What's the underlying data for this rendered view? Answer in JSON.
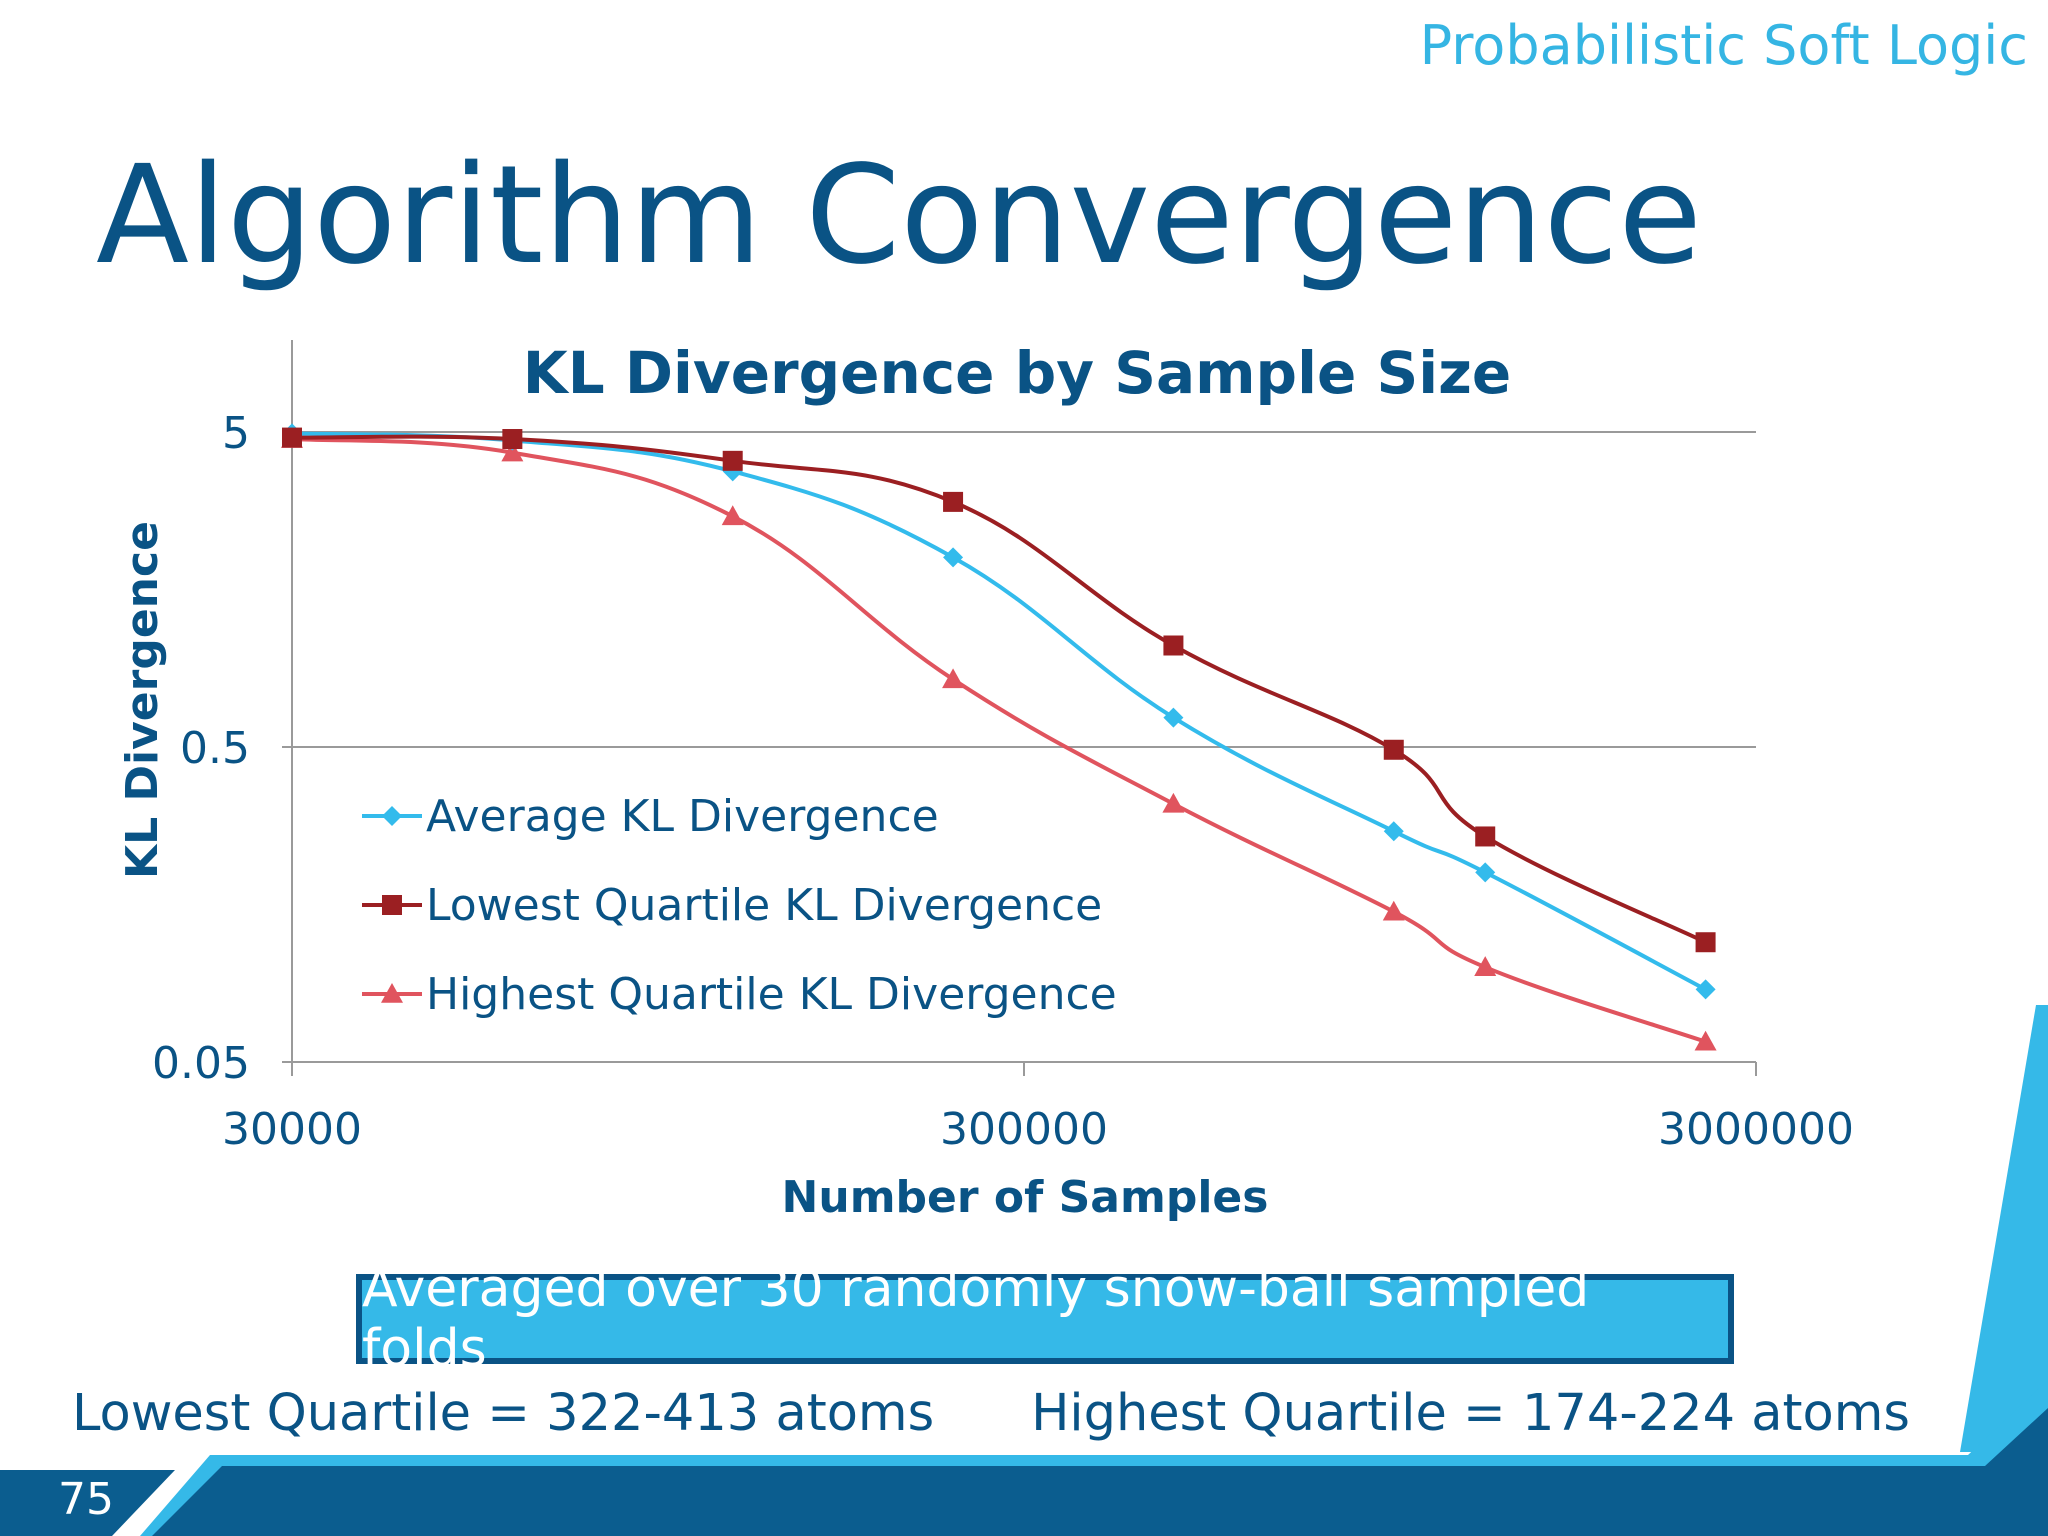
{
  "header": {
    "tag": "Probabilistic Soft Logic"
  },
  "slide": {
    "title": "Algorithm Convergence",
    "page_number": "75"
  },
  "note": {
    "text": "Averaged over 30 randomly snow-ball sampled folds"
  },
  "quartiles": {
    "lowest": "Lowest Quartile = 322-413 atoms",
    "highest": "Highest Quartile = 174-224 atoms"
  },
  "colors": {
    "title": "#0a5385",
    "accent": "#35b5e3",
    "average": "#33bbec",
    "lowest": "#9b1f22",
    "highest": "#e0545e",
    "footer_dark": "#0b5d8f"
  },
  "chart_data": {
    "type": "line",
    "title": "KL Divergence by Sample Size",
    "xlabel": "Number of Samples",
    "ylabel": "KL Divergence",
    "x_scale": "log",
    "y_scale": "log",
    "xlim": [
      30000,
      3000000
    ],
    "ylim": [
      0.05,
      5
    ],
    "x_ticks": [
      "30000",
      "300000",
      "3000000"
    ],
    "y_ticks": [
      "5",
      "0.5",
      "0.05"
    ],
    "grid": "horizontal",
    "legend_position": "left-inside",
    "x": [
      30000,
      60000,
      120000,
      240000,
      480000,
      960000,
      1280000,
      2560000
    ],
    "series": [
      {
        "name": "Average KL Divergence",
        "marker": "diamond",
        "color": "#33bbec",
        "values": [
          4.95,
          4.7,
          3.75,
          2.0,
          0.62,
          0.27,
          0.2,
          0.085
        ]
      },
      {
        "name": "Lowest Quartile KL Divergence",
        "marker": "square",
        "color": "#9b1f22",
        "values": [
          4.8,
          4.75,
          4.05,
          3.0,
          1.05,
          0.49,
          0.26,
          0.12
        ]
      },
      {
        "name": "Highest Quartile KL Divergence",
        "marker": "triangle",
        "color": "#e0545e",
        "values": [
          4.75,
          4.3,
          2.7,
          0.82,
          0.33,
          0.15,
          0.1,
          0.058
        ]
      }
    ]
  }
}
